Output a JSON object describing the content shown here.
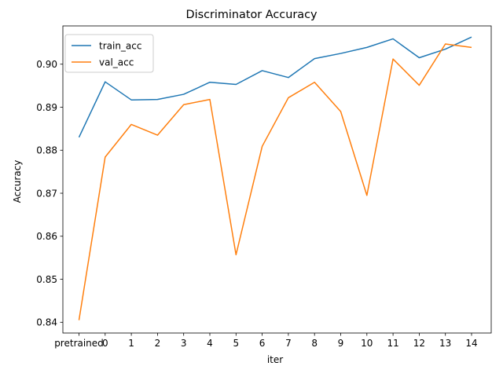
{
  "chart_data": {
    "type": "line",
    "title": "Discriminator Accuracy",
    "xlabel": "iter",
    "ylabel": "Accuracy",
    "categories": [
      "pretrained",
      "0",
      "1",
      "2",
      "3",
      "4",
      "5",
      "6",
      "7",
      "8",
      "9",
      "10",
      "11",
      "12",
      "13",
      "14"
    ],
    "y_ticks": [
      "0.84",
      "0.85",
      "0.86",
      "0.87",
      "0.88",
      "0.89",
      "0.90"
    ],
    "ylim": [
      0.8375,
      0.9089
    ],
    "grid": false,
    "legend_position": "top-left",
    "series": [
      {
        "name": "train_acc",
        "color": "#1f77b4",
        "values": [
          0.883,
          0.8959,
          0.8917,
          0.8918,
          0.893,
          0.8958,
          0.8953,
          0.8985,
          0.8969,
          0.9013,
          0.9025,
          0.9039,
          0.9059,
          0.9015,
          0.9035,
          0.9063
        ]
      },
      {
        "name": "val_acc",
        "color": "#ff7f0e",
        "values": [
          0.8405,
          0.8784,
          0.886,
          0.8835,
          0.8906,
          0.8918,
          0.8557,
          0.8809,
          0.8922,
          0.8958,
          0.889,
          0.8695,
          0.9012,
          0.8951,
          0.9047,
          0.9039
        ]
      }
    ]
  }
}
